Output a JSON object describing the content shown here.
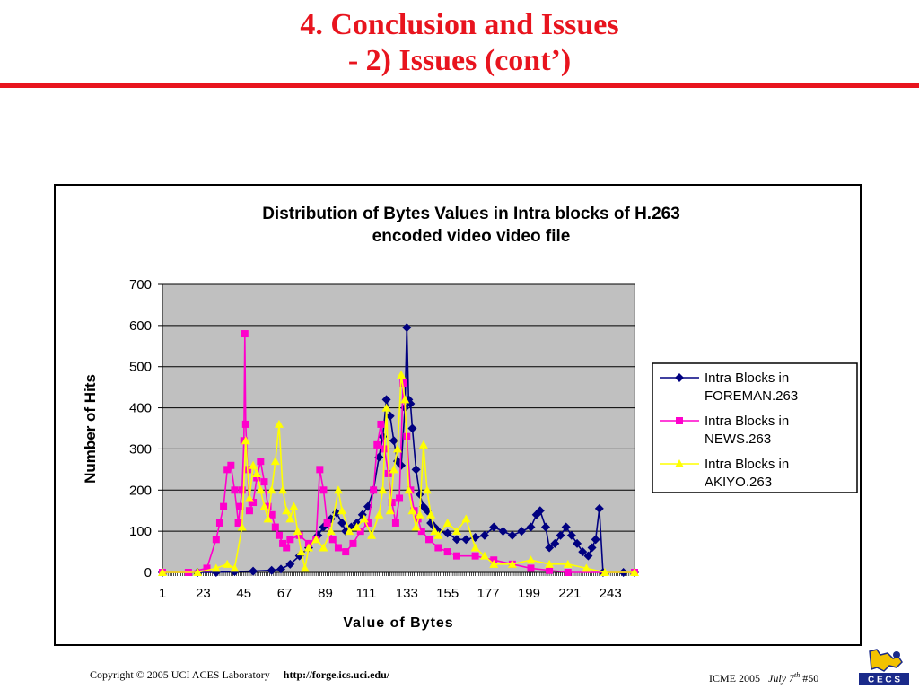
{
  "slide": {
    "title_line1": "4. Conclusion and Issues",
    "title_line2": "- 2) Issues (cont’)",
    "accent_color": "#e8141e"
  },
  "footer": {
    "copyright": "Copyright © 2005  UCI ACES Laboratory",
    "url": "http://forge.ics.uci.edu/",
    "conference": "ICME 2005",
    "date": "July 7",
    "date_sup": "th",
    "page": "#50",
    "logo_text": "C E C S"
  },
  "chart_data": {
    "type": "line",
    "title_line1": "Distribution of Bytes Values in Intra blocks of H.263",
    "title_line2": "encoded video video file",
    "xlabel": "Value of Bytes",
    "ylabel": "Number of Hits",
    "ylim": [
      0,
      700
    ],
    "yticks": [
      0,
      100,
      200,
      300,
      400,
      500,
      600,
      700
    ],
    "xlim": [
      1,
      256
    ],
    "xticks": [
      "1",
      "23",
      "45",
      "67",
      "89",
      "111",
      "133",
      "155",
      "177",
      "199",
      "221",
      "243"
    ],
    "grid": true,
    "legend_position": "right",
    "plot_background": "#c0c0c0",
    "series": [
      {
        "name": "Intra Blocks in FOREMAN.263",
        "legend_line1": "Intra Blocks in",
        "legend_line2": "FOREMAN.263",
        "color": "#000080",
        "marker": "diamond",
        "points": [
          [
            1,
            0
          ],
          [
            20,
            0
          ],
          [
            30,
            0
          ],
          [
            40,
            2
          ],
          [
            50,
            3
          ],
          [
            60,
            5
          ],
          [
            65,
            8
          ],
          [
            70,
            20
          ],
          [
            75,
            40
          ],
          [
            80,
            60
          ],
          [
            85,
            90
          ],
          [
            88,
            110
          ],
          [
            92,
            130
          ],
          [
            95,
            145
          ],
          [
            98,
            120
          ],
          [
            100,
            100
          ],
          [
            103,
            110
          ],
          [
            106,
            120
          ],
          [
            109,
            140
          ],
          [
            112,
            160
          ],
          [
            115,
            200
          ],
          [
            118,
            280
          ],
          [
            120,
            330
          ],
          [
            122,
            420
          ],
          [
            124,
            380
          ],
          [
            126,
            320
          ],
          [
            128,
            270
          ],
          [
            130,
            260
          ],
          [
            132,
            400
          ],
          [
            133,
            595
          ],
          [
            134,
            420
          ],
          [
            135,
            410
          ],
          [
            136,
            350
          ],
          [
            138,
            250
          ],
          [
            140,
            190
          ],
          [
            142,
            160
          ],
          [
            144,
            150
          ],
          [
            146,
            120
          ],
          [
            148,
            110
          ],
          [
            150,
            100
          ],
          [
            155,
            95
          ],
          [
            160,
            80
          ],
          [
            165,
            80
          ],
          [
            170,
            85
          ],
          [
            175,
            90
          ],
          [
            180,
            110
          ],
          [
            185,
            100
          ],
          [
            190,
            90
          ],
          [
            195,
            100
          ],
          [
            200,
            110
          ],
          [
            203,
            140
          ],
          [
            205,
            150
          ],
          [
            208,
            110
          ],
          [
            210,
            60
          ],
          [
            213,
            70
          ],
          [
            216,
            90
          ],
          [
            219,
            110
          ],
          [
            222,
            90
          ],
          [
            225,
            70
          ],
          [
            228,
            50
          ],
          [
            231,
            40
          ],
          [
            233,
            60
          ],
          [
            235,
            80
          ],
          [
            237,
            155
          ],
          [
            239,
            0
          ],
          [
            250,
            0
          ],
          [
            256,
            0
          ]
        ]
      },
      {
        "name": "Intra Blocks in NEWS.263",
        "legend_line1": "Intra Blocks in",
        "legend_line2": "NEWS.263",
        "color": "#ff00cc",
        "marker": "square",
        "points": [
          [
            1,
            0
          ],
          [
            15,
            0
          ],
          [
            25,
            10
          ],
          [
            30,
            80
          ],
          [
            32,
            120
          ],
          [
            34,
            160
          ],
          [
            36,
            250
          ],
          [
            38,
            260
          ],
          [
            40,
            200
          ],
          [
            42,
            120
          ],
          [
            43,
            160
          ],
          [
            44,
            200
          ],
          [
            45,
            320
          ],
          [
            45.5,
            580
          ],
          [
            46,
            360
          ],
          [
            47,
            250
          ],
          [
            48,
            150
          ],
          [
            50,
            170
          ],
          [
            52,
            230
          ],
          [
            54,
            270
          ],
          [
            56,
            220
          ],
          [
            58,
            160
          ],
          [
            60,
            140
          ],
          [
            62,
            110
          ],
          [
            64,
            90
          ],
          [
            66,
            70
          ],
          [
            68,
            60
          ],
          [
            70,
            80
          ],
          [
            75,
            90
          ],
          [
            80,
            70
          ],
          [
            84,
            80
          ],
          [
            86,
            250
          ],
          [
            88,
            200
          ],
          [
            90,
            120
          ],
          [
            93,
            80
          ],
          [
            96,
            60
          ],
          [
            100,
            50
          ],
          [
            104,
            70
          ],
          [
            108,
            100
          ],
          [
            112,
            120
          ],
          [
            115,
            200
          ],
          [
            117,
            310
          ],
          [
            119,
            360
          ],
          [
            121,
            300
          ],
          [
            123,
            240
          ],
          [
            125,
            170
          ],
          [
            127,
            120
          ],
          [
            129,
            180
          ],
          [
            131,
            460
          ],
          [
            133,
            330
          ],
          [
            135,
            200
          ],
          [
            137,
            150
          ],
          [
            139,
            130
          ],
          [
            141,
            100
          ],
          [
            145,
            80
          ],
          [
            150,
            60
          ],
          [
            155,
            50
          ],
          [
            160,
            40
          ],
          [
            170,
            40
          ],
          [
            180,
            30
          ],
          [
            190,
            20
          ],
          [
            200,
            10
          ],
          [
            210,
            5
          ],
          [
            220,
            0
          ],
          [
            256,
            0
          ]
        ]
      },
      {
        "name": "Intra Blocks in AKIYO.263",
        "legend_line1": "Intra Blocks in",
        "legend_line2": "AKIYO.263",
        "color": "#ffff00",
        "marker": "triangle",
        "points": [
          [
            1,
            0
          ],
          [
            20,
            0
          ],
          [
            30,
            10
          ],
          [
            36,
            20
          ],
          [
            40,
            10
          ],
          [
            44,
            110
          ],
          [
            46,
            320
          ],
          [
            48,
            180
          ],
          [
            50,
            260
          ],
          [
            52,
            240
          ],
          [
            54,
            200
          ],
          [
            56,
            160
          ],
          [
            58,
            130
          ],
          [
            60,
            200
          ],
          [
            62,
            270
          ],
          [
            64,
            360
          ],
          [
            66,
            200
          ],
          [
            68,
            150
          ],
          [
            70,
            130
          ],
          [
            72,
            160
          ],
          [
            74,
            100
          ],
          [
            76,
            50
          ],
          [
            78,
            10
          ],
          [
            80,
            60
          ],
          [
            84,
            80
          ],
          [
            88,
            60
          ],
          [
            92,
            100
          ],
          [
            96,
            200
          ],
          [
            98,
            150
          ],
          [
            102,
            100
          ],
          [
            106,
            110
          ],
          [
            110,
            130
          ],
          [
            114,
            90
          ],
          [
            118,
            140
          ],
          [
            120,
            200
          ],
          [
            122,
            400
          ],
          [
            124,
            150
          ],
          [
            126,
            250
          ],
          [
            128,
            300
          ],
          [
            130,
            480
          ],
          [
            132,
            420
          ],
          [
            134,
            200
          ],
          [
            136,
            150
          ],
          [
            138,
            110
          ],
          [
            140,
            140
          ],
          [
            142,
            310
          ],
          [
            144,
            200
          ],
          [
            146,
            140
          ],
          [
            148,
            100
          ],
          [
            150,
            90
          ],
          [
            155,
            120
          ],
          [
            160,
            100
          ],
          [
            165,
            130
          ],
          [
            170,
            60
          ],
          [
            175,
            40
          ],
          [
            180,
            20
          ],
          [
            190,
            20
          ],
          [
            200,
            30
          ],
          [
            210,
            20
          ],
          [
            220,
            20
          ],
          [
            230,
            10
          ],
          [
            240,
            0
          ],
          [
            256,
            0
          ]
        ]
      }
    ]
  }
}
